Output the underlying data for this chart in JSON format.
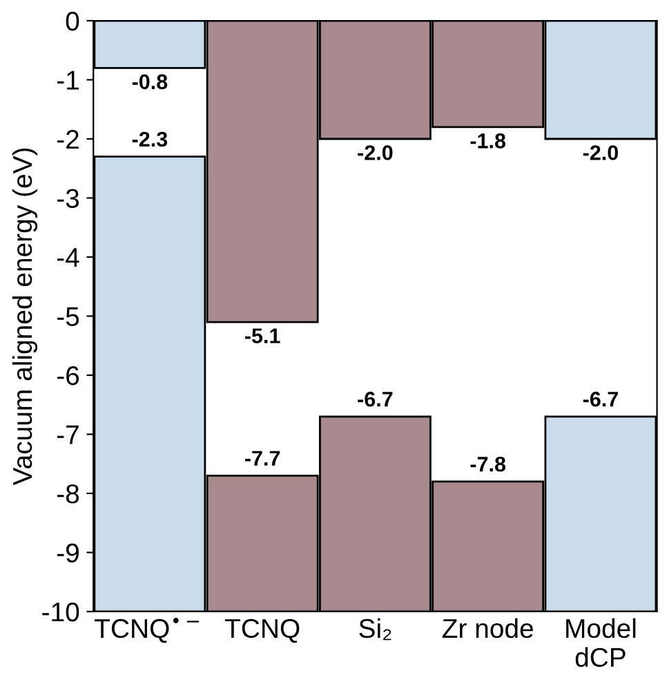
{
  "chart_data": {
    "type": "bar",
    "ylabel": "Vacuum aligned energy (eV)",
    "categories": [
      "TCNQ$^{•−}$",
      "TCNQ",
      "Si₂",
      "Zr node",
      "Model\ndCP"
    ],
    "series": [
      {
        "type": "bar",
        "base": [
          0,
          0,
          0,
          0,
          0
        ],
        "values": [
          -0.8,
          -5.1,
          -2.0,
          -1.8,
          -2.0
        ],
        "colors": [
          "#c9dcec",
          "#a88a8e",
          "#a88a8e",
          "#a88a8e",
          "#c9dcec"
        ],
        "value_labels": [
          "-0.8",
          "-5.1",
          "-2.0",
          "-1.8",
          "-2.0"
        ]
      },
      {
        "type": "bar",
        "base": [
          -10,
          -10,
          -10,
          -10,
          -10
        ],
        "values": [
          7.7,
          2.3,
          3.3,
          2.2,
          3.3
        ],
        "colors": [
          "#c9dcec",
          "#a88a8e",
          "#a88a8e",
          "#a88a8e",
          "#c9dcec"
        ],
        "value_labels": [
          "-2.3",
          "-7.7",
          "-6.7",
          "-7.8",
          "-6.7"
        ]
      }
    ],
    "ylim": [
      -10,
      0
    ],
    "yticks": [
      0,
      -1,
      -2,
      -3,
      -4,
      -5,
      -6,
      -7,
      -8,
      -9,
      -10
    ],
    "grid": false
  }
}
